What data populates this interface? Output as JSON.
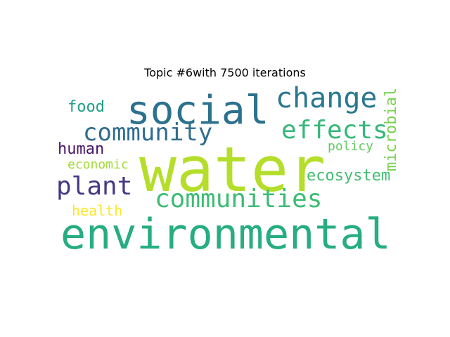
{
  "title": "Topic #6with 7500 iterations",
  "colors": {
    "background": "#ffffff",
    "title": "#000000"
  },
  "words": {
    "water": {
      "text": "water",
      "color": "#b5de2b"
    },
    "environmental": {
      "text": "environmental",
      "color": "#26ad81"
    },
    "social": {
      "text": "social",
      "color": "#2c718e"
    },
    "change": {
      "text": "change",
      "color": "#2a788e"
    },
    "community": {
      "text": "community",
      "color": "#2f6c8e"
    },
    "effects": {
      "text": "effects",
      "color": "#35b779"
    },
    "communities": {
      "text": "communities",
      "color": "#3dbc74"
    },
    "plant": {
      "text": "plant",
      "color": "#443983"
    },
    "ecosystem": {
      "text": "ecosystem",
      "color": "#42be71"
    },
    "microbial": {
      "text": "microbial",
      "color": "#7ad151"
    },
    "food": {
      "text": "food",
      "color": "#1f9e89"
    },
    "human": {
      "text": "human",
      "color": "#481467"
    },
    "economic": {
      "text": "economic",
      "color": "#a2da37"
    },
    "policy": {
      "text": "policy",
      "color": "#63cb5f"
    },
    "health": {
      "text": "health",
      "color": "#fde725"
    }
  }
}
